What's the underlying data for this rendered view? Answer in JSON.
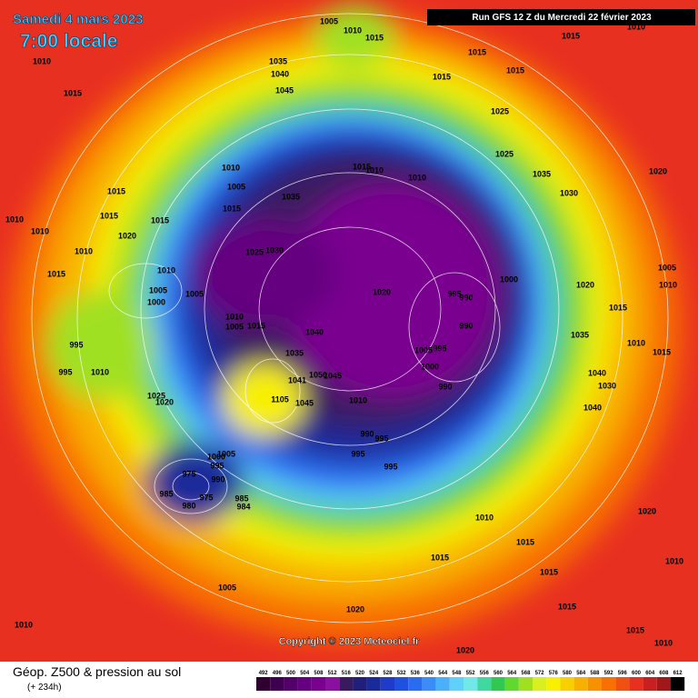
{
  "header": {
    "date": "Samedi 4 mars 2023",
    "time": "7:00 locale",
    "run": "Run GFS 12 Z du Mercredi 22 février 2023"
  },
  "footer": {
    "title": "Géop. Z500 & pression au sol",
    "lead": "(+ 234h)",
    "copyright": "Copyright © 2023 Meteociel.fr"
  },
  "scale": {
    "levels": [
      "492",
      "496",
      "500",
      "504",
      "508",
      "512",
      "516",
      "520",
      "524",
      "528",
      "532",
      "536",
      "540",
      "544",
      "548",
      "552",
      "556",
      "560",
      "564",
      "568",
      "572",
      "576",
      "580",
      "584",
      "588",
      "592",
      "596",
      "600",
      "604",
      "608",
      "612"
    ],
    "colors": [
      "#2d0030",
      "#3f0050",
      "#53006b",
      "#650080",
      "#7a0090",
      "#8a10a0",
      "#3a1a5e",
      "#20207a",
      "#1a2a9a",
      "#1e3cc8",
      "#2050e0",
      "#2a6cf0",
      "#3a8cf8",
      "#4ab0fa",
      "#60d0fc",
      "#70e8e8",
      "#40d8a0",
      "#30c850",
      "#60d830",
      "#a0e020",
      "#d8f020",
      "#f8f000",
      "#f8d000",
      "#f8b000",
      "#f89000",
      "#f87000",
      "#f05010",
      "#e83020",
      "#c82020",
      "#a01818",
      "#000000"
    ]
  },
  "pressure_labels": [
    "1005",
    "1010",
    "1015",
    "1015",
    "1010",
    "1035",
    "1040",
    "1045",
    "1015",
    "1015",
    "1015",
    "1010",
    "1015",
    "1025",
    "1025",
    "1035",
    "1030",
    "1020",
    "1010",
    "1005",
    "1035",
    "1015",
    "1010",
    "1010",
    "1015",
    "1015",
    "1015",
    "1015",
    "1020",
    "1010",
    "1015",
    "1010",
    "1005",
    "1000",
    "1005",
    "1025",
    "1030",
    "1020",
    "1000",
    "1020",
    "1015",
    "1005",
    "1010",
    "995",
    "990",
    "990",
    "1010",
    "1005",
    "1015",
    "1040",
    "1035",
    "995",
    "1005",
    "995",
    "1000",
    "990",
    "1035",
    "1010",
    "1015",
    "1040",
    "1030",
    "1040",
    "1041",
    "1050",
    "1045",
    "1025",
    "1020",
    "1105",
    "1045",
    "1010",
    "990",
    "995",
    "995",
    "995",
    "1005",
    "1000",
    "995",
    "975",
    "990",
    "985",
    "975",
    "985",
    "980",
    "984",
    "1010",
    "1015",
    "1015",
    "1015",
    "1010",
    "1020",
    "1015",
    "1015",
    "1010",
    "1020",
    "1005",
    "1010",
    "1020",
    "1010",
    "1010",
    "995",
    "1010"
  ]
}
